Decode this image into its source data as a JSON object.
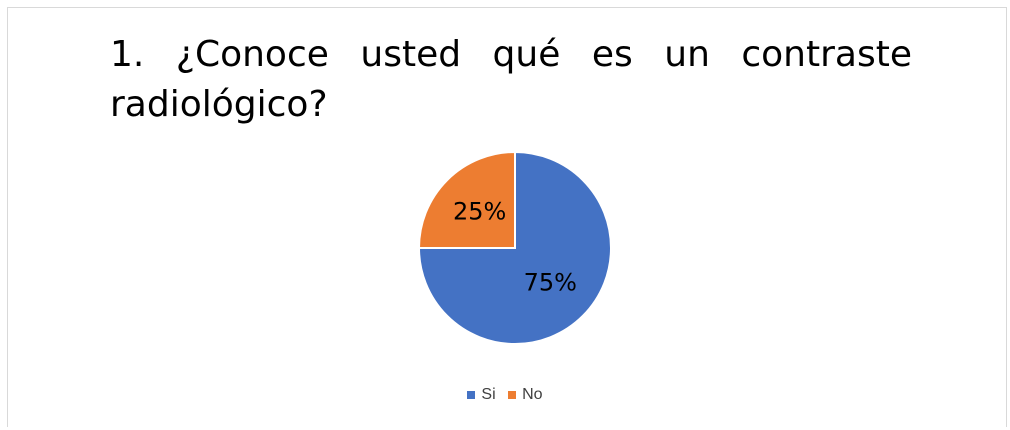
{
  "chart_data": {
    "type": "pie",
    "title": "1. ¿Conoce usted qué es un contraste radiológico?",
    "categories": [
      "Si",
      "No"
    ],
    "values": [
      75,
      25
    ],
    "data_labels": [
      "75%",
      "25%"
    ],
    "colors": [
      "#4472c4",
      "#ed7d31"
    ],
    "legend_position": "bottom"
  }
}
